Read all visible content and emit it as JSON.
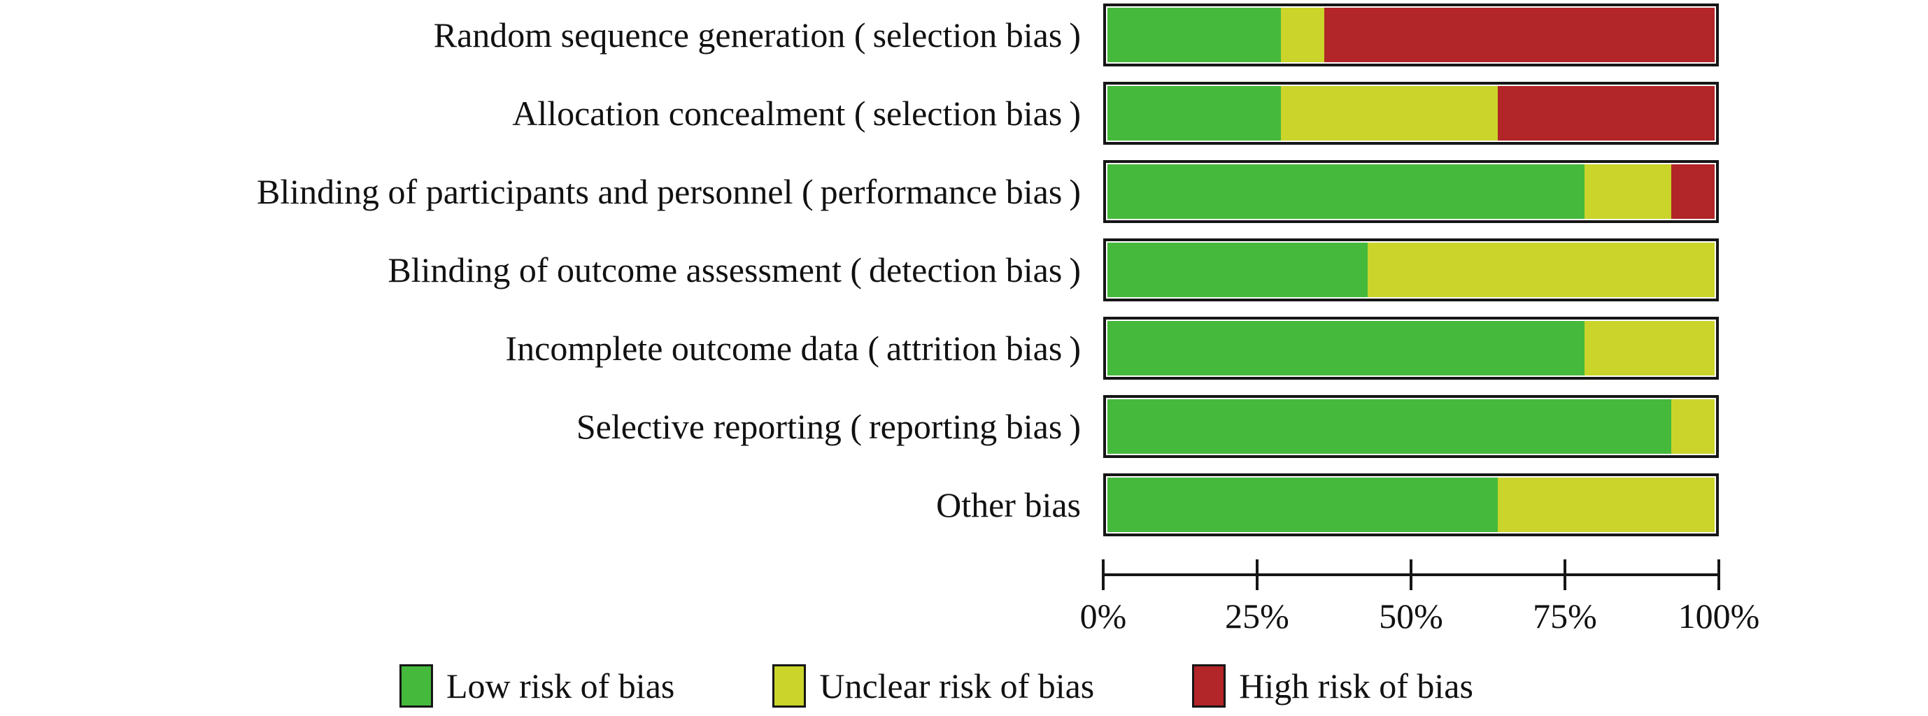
{
  "chart_data": {
    "type": "bar",
    "orientation": "horizontal-stacked",
    "unit": "percent of studies",
    "categories": [
      "Random sequence generation ( selection bias )",
      "Allocation concealment ( selection bias )",
      "Blinding of participants and personnel ( performance bias )",
      "Blinding of outcome assessment ( detection bias )",
      "Incomplete outcome data ( attrition bias )",
      "Selective reporting ( reporting bias )",
      "Other bias"
    ],
    "series": [
      {
        "name": "Low risk of bias",
        "color": "#45b93c",
        "values": [
          28.6,
          28.6,
          78.6,
          42.9,
          78.6,
          92.9,
          64.3
        ]
      },
      {
        "name": "Unclear risk of bias",
        "color": "#cad42a",
        "values": [
          7.1,
          35.7,
          14.3,
          57.1,
          21.4,
          7.1,
          35.7
        ]
      },
      {
        "name": "High risk of bias",
        "color": "#b22528",
        "values": [
          64.3,
          35.7,
          7.1,
          0,
          0,
          0,
          0
        ]
      }
    ],
    "x_axis": {
      "ticks": [
        "0%",
        "25%",
        "50%",
        "75%",
        "100%"
      ],
      "range": [
        0,
        100
      ]
    },
    "legend": {
      "position": "bottom",
      "items": [
        "Low risk of bias",
        "Unclear risk of bias",
        "High risk of bias"
      ]
    },
    "grid": false,
    "bar_border_color": "#161616"
  }
}
